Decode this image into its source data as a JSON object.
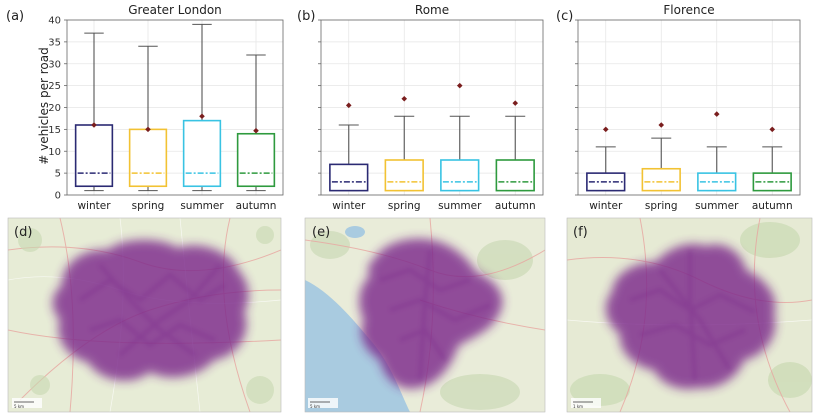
{
  "chart_data": [
    {
      "type": "box",
      "panel_label": "(a)",
      "title": "Greater London",
      "ylabel": "# vehicles per road",
      "ylim": [
        0,
        40
      ],
      "yticks": [
        0,
        5,
        10,
        15,
        20,
        25,
        30,
        35,
        40
      ],
      "grid": true,
      "categories": [
        "winter",
        "spring",
        "summer",
        "autumn"
      ],
      "boxes": [
        {
          "whislo": 1,
          "q1": 2,
          "med": 5,
          "q3": 16,
          "whishi": 37,
          "outlier": 16
        },
        {
          "whislo": 1,
          "q1": 2,
          "med": 5,
          "q3": 15,
          "whishi": 34,
          "outlier": 15
        },
        {
          "whislo": 1,
          "q1": 2,
          "med": 5,
          "q3": 17,
          "whishi": 39,
          "outlier": 18
        },
        {
          "whislo": 1,
          "q1": 2,
          "med": 5,
          "q3": 14,
          "whishi": 32,
          "outlier": 14.7
        }
      ]
    },
    {
      "type": "box",
      "panel_label": "(b)",
      "title": "Rome",
      "ylabel": "",
      "ylim": [
        0,
        40
      ],
      "yticks": [
        0,
        5,
        10,
        15,
        20,
        25,
        30,
        35,
        40
      ],
      "grid": true,
      "categories": [
        "winter",
        "spring",
        "summer",
        "autumn"
      ],
      "boxes": [
        {
          "whislo": 1,
          "q1": 1,
          "med": 3,
          "q3": 7,
          "whishi": 16,
          "outlier": 20.5
        },
        {
          "whislo": 1,
          "q1": 1,
          "med": 3,
          "q3": 8,
          "whishi": 18,
          "outlier": 22
        },
        {
          "whislo": 1,
          "q1": 1,
          "med": 3,
          "q3": 8,
          "whishi": 18,
          "outlier": 25
        },
        {
          "whislo": 1,
          "q1": 1,
          "med": 3,
          "q3": 8,
          "whishi": 18,
          "outlier": 21
        }
      ]
    },
    {
      "type": "box",
      "panel_label": "(c)",
      "title": "Florence",
      "ylabel": "",
      "ylim": [
        0,
        40
      ],
      "yticks": [
        0,
        5,
        10,
        15,
        20,
        25,
        30,
        35,
        40
      ],
      "grid": true,
      "categories": [
        "winter",
        "spring",
        "summer",
        "autumn"
      ],
      "boxes": [
        {
          "whislo": 1,
          "q1": 1,
          "med": 3,
          "q3": 5,
          "whishi": 11,
          "outlier": 15
        },
        {
          "whislo": 1,
          "q1": 1,
          "med": 3,
          "q3": 6,
          "whishi": 13,
          "outlier": 16
        },
        {
          "whislo": 1,
          "q1": 1,
          "med": 3,
          "q3": 5,
          "whishi": 11,
          "outlier": 18.5
        },
        {
          "whislo": 1,
          "q1": 1,
          "med": 3,
          "q3": 5,
          "whishi": 11,
          "outlier": 15
        }
      ]
    }
  ],
  "series_colors": {
    "winter": "#2b2a73",
    "spring": "#f2c233",
    "summer": "#39c3e3",
    "autumn": "#2e9a3e",
    "outlier": "#7a1e1e"
  },
  "maps": [
    {
      "panel_label": "(d)",
      "city": "Greater London",
      "heat_color": "#7d2a8c",
      "base_color": "#e7ecd6",
      "scale_text": "5 km"
    },
    {
      "panel_label": "(e)",
      "city": "Rome",
      "heat_color": "#7d2a8c",
      "base_color": "#e9ecd9",
      "sea_color": "#a9cbe0",
      "scale_text": "5 km"
    },
    {
      "panel_label": "(f)",
      "city": "Florence",
      "heat_color": "#7d2a8c",
      "base_color": "#e6ead4",
      "scale_text": "1 km"
    }
  ]
}
